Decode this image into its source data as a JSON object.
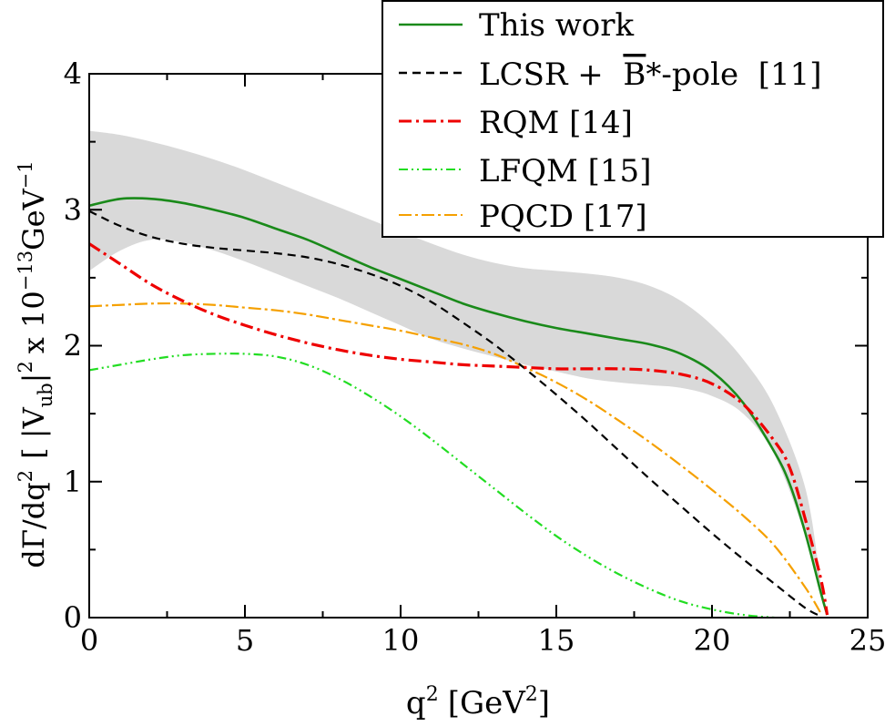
{
  "chart_data": {
    "type": "line",
    "title": "",
    "xlabel": "q",
    "xlabel_sup": "2",
    "xlabel_unit": "[GeV",
    "xlabel_unit_sup": "2",
    "xlabel_unit_close": "]",
    "ylabel_parts": {
      "a": "dΓ/dq",
      "a_sup": "2",
      "b": "[ |V",
      "b_sub": "ub",
      "c": "|",
      "c_sup": "2",
      "d": "x 10",
      "d_sup": "−13",
      "e": "GeV",
      "e_sup": "−1"
    },
    "xlim": [
      0,
      25
    ],
    "ylim": [
      0,
      4
    ],
    "xticks": [
      0,
      5,
      10,
      15,
      20,
      25
    ],
    "yticks": [
      0,
      1,
      2,
      3,
      4
    ],
    "band": {
      "name": "This work uncertainty",
      "color": "#d9d9d9",
      "upper": [
        [
          0,
          3.58
        ],
        [
          1,
          3.55
        ],
        [
          2,
          3.5
        ],
        [
          3,
          3.44
        ],
        [
          4,
          3.37
        ],
        [
          5,
          3.29
        ],
        [
          6,
          3.2
        ],
        [
          7,
          3.11
        ],
        [
          8,
          3.02
        ],
        [
          9,
          2.93
        ],
        [
          10,
          2.84
        ],
        [
          11,
          2.75
        ],
        [
          12,
          2.67
        ],
        [
          13,
          2.61
        ],
        [
          14,
          2.57
        ],
        [
          15,
          2.55
        ],
        [
          16,
          2.53
        ],
        [
          17,
          2.5
        ],
        [
          18,
          2.44
        ],
        [
          19,
          2.33
        ],
        [
          20,
          2.15
        ],
        [
          21,
          1.9
        ],
        [
          22,
          1.55
        ],
        [
          23,
          0.95
        ],
        [
          23.5,
          0.25
        ],
        [
          23.7,
          0.0
        ]
      ],
      "lower": [
        [
          0,
          2.55
        ],
        [
          1,
          2.7
        ],
        [
          2,
          2.78
        ],
        [
          3,
          2.76
        ],
        [
          4,
          2.7
        ],
        [
          5,
          2.62
        ],
        [
          6,
          2.53
        ],
        [
          7,
          2.44
        ],
        [
          8,
          2.35
        ],
        [
          9,
          2.25
        ],
        [
          10,
          2.15
        ],
        [
          11,
          2.05
        ],
        [
          12,
          1.98
        ],
        [
          13,
          1.92
        ],
        [
          14,
          1.86
        ],
        [
          15,
          1.81
        ],
        [
          16,
          1.76
        ],
        [
          17,
          1.73
        ],
        [
          18,
          1.71
        ],
        [
          19,
          1.69
        ],
        [
          20,
          1.63
        ],
        [
          21,
          1.5
        ],
        [
          22,
          1.2
        ],
        [
          23,
          0.6
        ],
        [
          23.5,
          0.15
        ],
        [
          23.7,
          0.0
        ]
      ]
    },
    "series": [
      {
        "name": "This work",
        "color": "#1a8a1a",
        "dash": "",
        "points": [
          [
            0,
            3.03
          ],
          [
            1,
            3.08
          ],
          [
            2,
            3.08
          ],
          [
            3,
            3.05
          ],
          [
            4,
            3.0
          ],
          [
            5,
            2.94
          ],
          [
            6,
            2.86
          ],
          [
            7,
            2.78
          ],
          [
            8,
            2.68
          ],
          [
            9,
            2.58
          ],
          [
            10,
            2.49
          ],
          [
            11,
            2.4
          ],
          [
            12,
            2.31
          ],
          [
            13,
            2.24
          ],
          [
            14,
            2.18
          ],
          [
            15,
            2.13
          ],
          [
            16,
            2.09
          ],
          [
            17,
            2.05
          ],
          [
            18,
            2.01
          ],
          [
            19,
            1.94
          ],
          [
            20,
            1.81
          ],
          [
            21,
            1.58
          ],
          [
            22,
            1.22
          ],
          [
            22.5,
            0.98
          ],
          [
            23,
            0.62
          ],
          [
            23.5,
            0.18
          ],
          [
            23.7,
            0.02
          ]
        ]
      },
      {
        "name_parts": [
          "LCSR +  ",
          "B",
          "*-pole  [11]"
        ],
        "name": "LCSR +  B*-pole  [11]",
        "color": "#000000",
        "dash": "9,6",
        "points": [
          [
            0,
            2.99
          ],
          [
            1,
            2.88
          ],
          [
            2,
            2.8
          ],
          [
            3,
            2.75
          ],
          [
            4,
            2.72
          ],
          [
            5,
            2.7
          ],
          [
            6,
            2.68
          ],
          [
            7,
            2.65
          ],
          [
            8,
            2.6
          ],
          [
            9,
            2.53
          ],
          [
            10,
            2.44
          ],
          [
            11,
            2.32
          ],
          [
            12,
            2.17
          ],
          [
            13,
            2.01
          ],
          [
            14,
            1.83
          ],
          [
            15,
            1.64
          ],
          [
            16,
            1.44
          ],
          [
            17,
            1.23
          ],
          [
            18,
            1.02
          ],
          [
            19,
            0.82
          ],
          [
            20,
            0.62
          ],
          [
            21,
            0.43
          ],
          [
            22,
            0.25
          ],
          [
            23,
            0.07
          ],
          [
            23.5,
            0.01
          ]
        ]
      },
      {
        "name": "RQM [14]",
        "color": "#ee0000",
        "dash": "14,5,3,5",
        "points": [
          [
            0,
            2.75
          ],
          [
            1,
            2.6
          ],
          [
            2,
            2.45
          ],
          [
            3,
            2.33
          ],
          [
            4,
            2.23
          ],
          [
            5,
            2.15
          ],
          [
            6,
            2.08
          ],
          [
            7,
            2.02
          ],
          [
            8,
            1.97
          ],
          [
            9,
            1.93
          ],
          [
            10,
            1.9
          ],
          [
            11,
            1.88
          ],
          [
            12,
            1.86
          ],
          [
            13,
            1.85
          ],
          [
            14,
            1.84
          ],
          [
            15,
            1.83
          ],
          [
            16,
            1.83
          ],
          [
            17,
            1.83
          ],
          [
            18,
            1.82
          ],
          [
            19,
            1.79
          ],
          [
            20,
            1.72
          ],
          [
            21,
            1.57
          ],
          [
            22,
            1.3
          ],
          [
            22.5,
            1.1
          ],
          [
            23,
            0.72
          ],
          [
            23.5,
            0.28
          ],
          [
            23.7,
            0.02
          ]
        ]
      },
      {
        "name": "LFQM [15]",
        "color": "#22dd22",
        "dash": "10,4,2,4,2,4",
        "points": [
          [
            0,
            1.82
          ],
          [
            1,
            1.86
          ],
          [
            2,
            1.9
          ],
          [
            3,
            1.93
          ],
          [
            4,
            1.94
          ],
          [
            5,
            1.94
          ],
          [
            6,
            1.92
          ],
          [
            7,
            1.86
          ],
          [
            8,
            1.76
          ],
          [
            9,
            1.63
          ],
          [
            10,
            1.48
          ],
          [
            11,
            1.31
          ],
          [
            12,
            1.13
          ],
          [
            13,
            0.95
          ],
          [
            14,
            0.77
          ],
          [
            15,
            0.6
          ],
          [
            16,
            0.45
          ],
          [
            17,
            0.32
          ],
          [
            18,
            0.21
          ],
          [
            19,
            0.12
          ],
          [
            20,
            0.06
          ],
          [
            21,
            0.02
          ],
          [
            22,
            0.0
          ]
        ]
      },
      {
        "name": "PQCD [17]",
        "color": "#f5a000",
        "dash": "14,4,3,4",
        "points": [
          [
            0,
            2.29
          ],
          [
            1,
            2.3
          ],
          [
            2,
            2.31
          ],
          [
            3,
            2.31
          ],
          [
            4,
            2.3
          ],
          [
            5,
            2.28
          ],
          [
            6,
            2.26
          ],
          [
            7,
            2.23
          ],
          [
            8,
            2.19
          ],
          [
            9,
            2.15
          ],
          [
            10,
            2.11
          ],
          [
            11,
            2.06
          ],
          [
            12,
            2.01
          ],
          [
            13,
            1.94
          ],
          [
            14,
            1.84
          ],
          [
            15,
            1.73
          ],
          [
            16,
            1.6
          ],
          [
            17,
            1.45
          ],
          [
            18,
            1.29
          ],
          [
            19,
            1.12
          ],
          [
            20,
            0.94
          ],
          [
            21,
            0.75
          ],
          [
            22,
            0.53
          ],
          [
            23,
            0.22
          ],
          [
            23.5,
            0.03
          ]
        ]
      }
    ],
    "legend_position": "top-right"
  }
}
